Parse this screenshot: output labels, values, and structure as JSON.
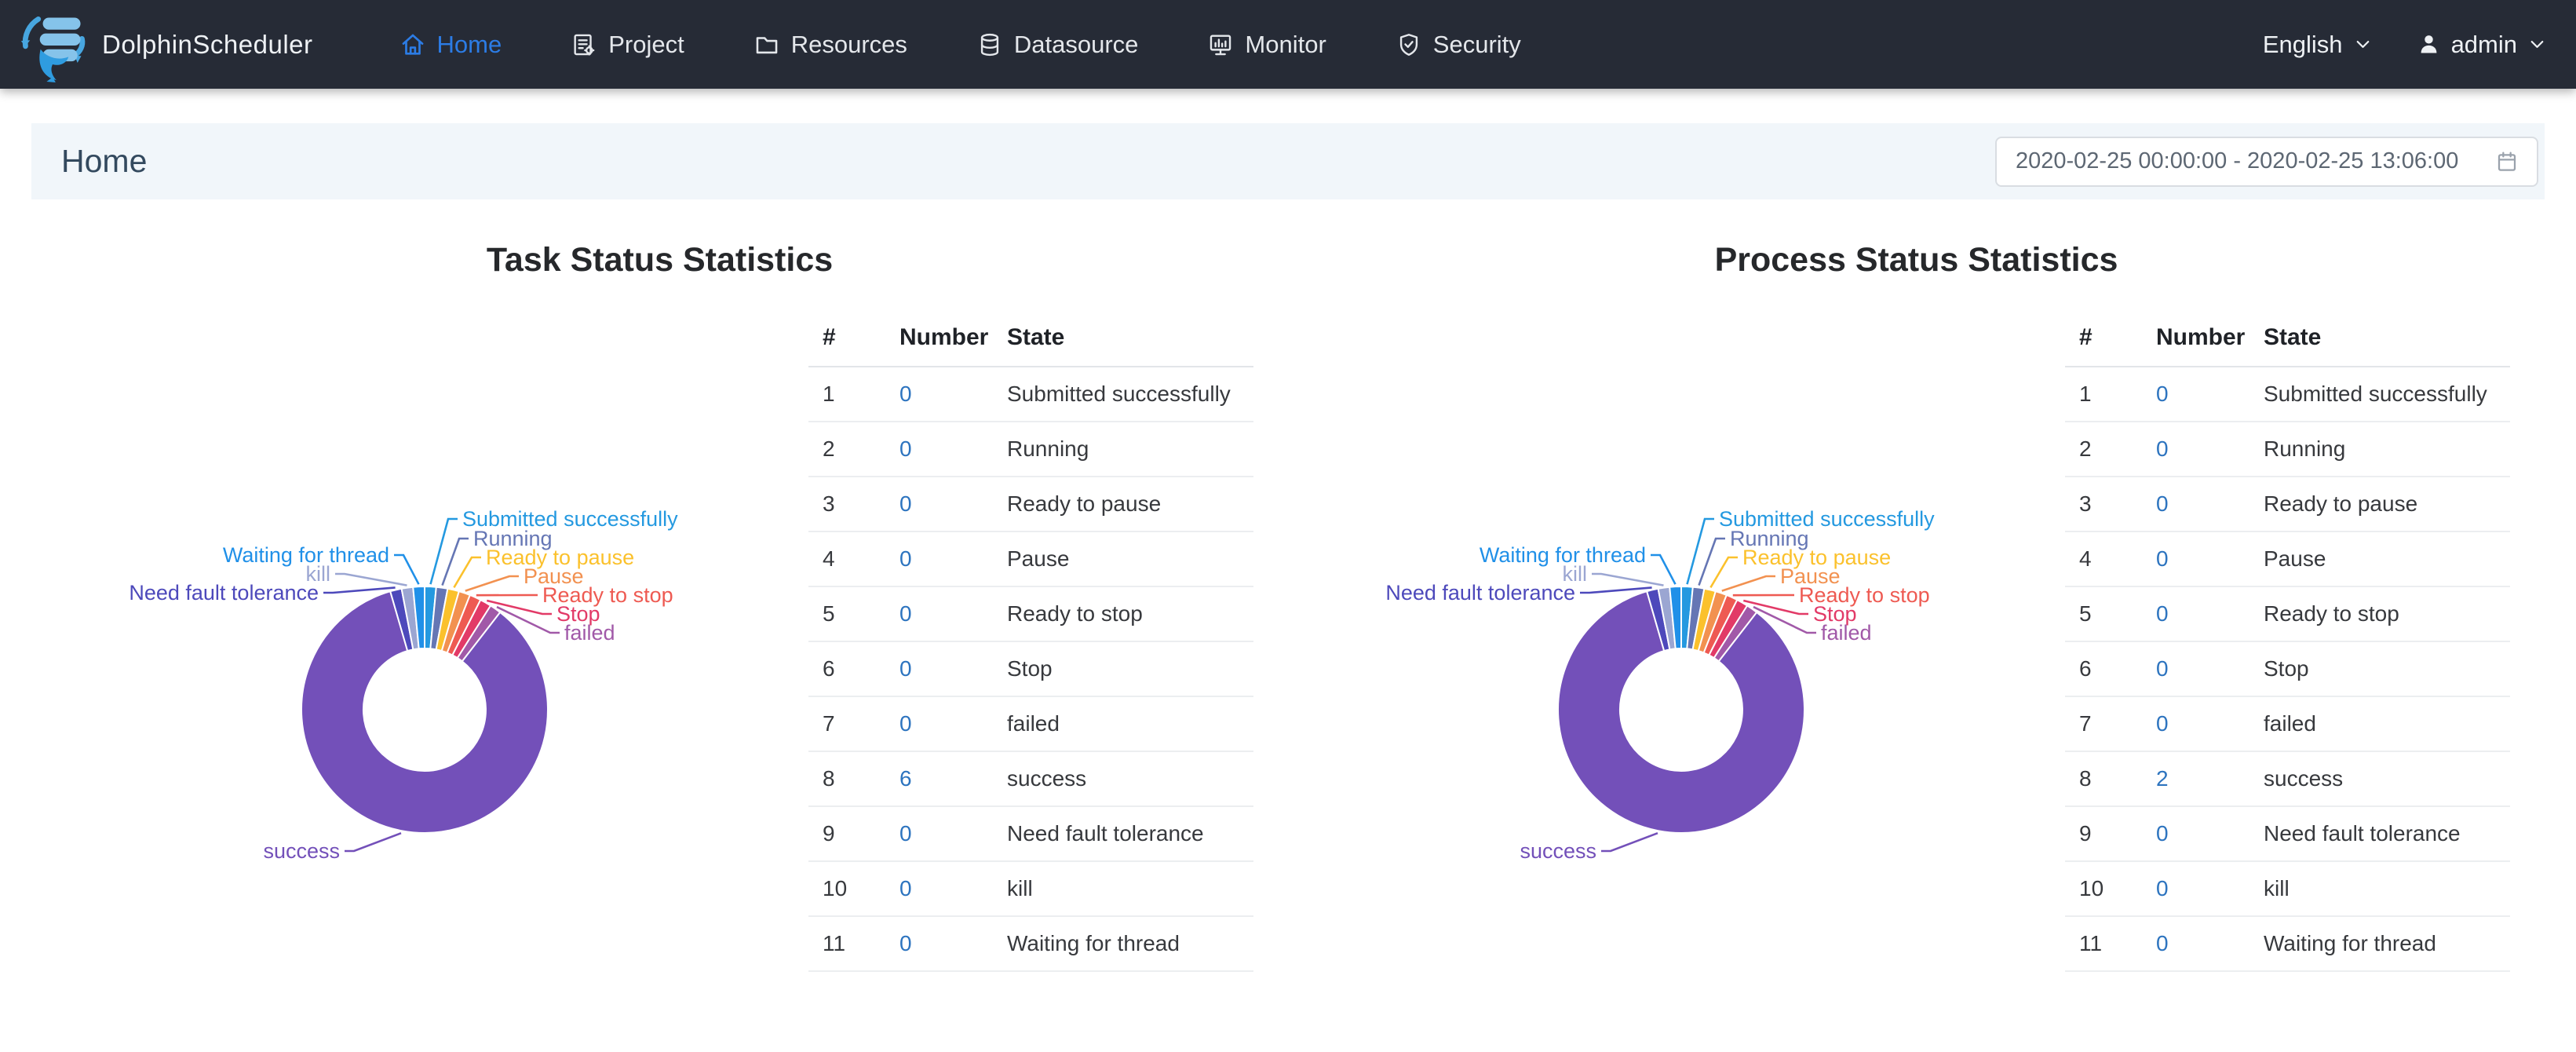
{
  "navbar": {
    "brand": "DolphinScheduler",
    "items": [
      {
        "label": "Home",
        "active": true
      },
      {
        "label": "Project",
        "active": false
      },
      {
        "label": "Resources",
        "active": false
      },
      {
        "label": "Datasource",
        "active": false
      },
      {
        "label": "Monitor",
        "active": false
      },
      {
        "label": "Security",
        "active": false
      }
    ],
    "language": "English",
    "user": "admin"
  },
  "header": {
    "title": "Home",
    "date_range": "2020-02-25 00:00:00 - 2020-02-25 13:06:00"
  },
  "table": {
    "columns": [
      "#",
      "Number",
      "State"
    ]
  },
  "panels": [
    {
      "title": "Task Status Statistics",
      "rows": [
        {
          "index": "1",
          "number": "0",
          "state": "Submitted successfully"
        },
        {
          "index": "2",
          "number": "0",
          "state": "Running"
        },
        {
          "index": "3",
          "number": "0",
          "state": "Ready to pause"
        },
        {
          "index": "4",
          "number": "0",
          "state": "Pause"
        },
        {
          "index": "5",
          "number": "0",
          "state": "Ready to stop"
        },
        {
          "index": "6",
          "number": "0",
          "state": "Stop"
        },
        {
          "index": "7",
          "number": "0",
          "state": "failed"
        },
        {
          "index": "8",
          "number": "6",
          "state": "success"
        },
        {
          "index": "9",
          "number": "0",
          "state": "Need fault tolerance"
        },
        {
          "index": "10",
          "number": "0",
          "state": "kill"
        },
        {
          "index": "11",
          "number": "0",
          "state": "Waiting for thread"
        }
      ]
    },
    {
      "title": "Process Status Statistics",
      "rows": [
        {
          "index": "1",
          "number": "0",
          "state": "Submitted successfully"
        },
        {
          "index": "2",
          "number": "0",
          "state": "Running"
        },
        {
          "index": "3",
          "number": "0",
          "state": "Ready to pause"
        },
        {
          "index": "4",
          "number": "0",
          "state": "Pause"
        },
        {
          "index": "5",
          "number": "0",
          "state": "Ready to stop"
        },
        {
          "index": "6",
          "number": "0",
          "state": "Stop"
        },
        {
          "index": "7",
          "number": "0",
          "state": "failed"
        },
        {
          "index": "8",
          "number": "2",
          "state": "success"
        },
        {
          "index": "9",
          "number": "0",
          "state": "Need fault tolerance"
        },
        {
          "index": "10",
          "number": "0",
          "state": "kill"
        },
        {
          "index": "11",
          "number": "0",
          "state": "Waiting for thread"
        }
      ]
    }
  ],
  "chart_data": [
    {
      "type": "pie",
      "subtype": "donut",
      "title": "Task Status Statistics",
      "labels": [
        "Submitted successfully",
        "Running",
        "Ready to pause",
        "Pause",
        "Ready to stop",
        "Stop",
        "failed",
        "success",
        "Need fault tolerance",
        "kill",
        "Waiting for thread"
      ],
      "values": [
        0,
        0,
        0,
        0,
        0,
        0,
        0,
        6,
        0,
        0,
        0
      ],
      "colors": [
        "#2499e0",
        "#6576b4",
        "#fbc12c",
        "#f29150",
        "#ee5a52",
        "#e23a67",
        "#a159a8",
        "#7350b9",
        "#4d49bb",
        "#9ba6d2",
        "#2090e8"
      ],
      "legend": "none",
      "labels_position": "outside",
      "zero_slice_min_angle_deg": 5.4
    },
    {
      "type": "pie",
      "subtype": "donut",
      "title": "Process Status Statistics",
      "labels": [
        "Submitted successfully",
        "Running",
        "Ready to pause",
        "Pause",
        "Ready to stop",
        "Stop",
        "failed",
        "success",
        "Need fault tolerance",
        "kill",
        "Waiting for thread"
      ],
      "values": [
        0,
        0,
        0,
        0,
        0,
        0,
        0,
        2,
        0,
        0,
        0
      ],
      "colors": [
        "#2499e0",
        "#6576b4",
        "#fbc12c",
        "#f29150",
        "#ee5a52",
        "#e23a67",
        "#a159a8",
        "#7350b9",
        "#4d49bb",
        "#9ba6d2",
        "#2090e8"
      ],
      "legend": "none",
      "labels_position": "outside",
      "zero_slice_min_angle_deg": 5.4
    }
  ],
  "colors": {
    "navbar_bg": "#262b36",
    "header_bg": "#f1f6fa",
    "nav_active": "#2c7ce5",
    "number_link": "#2d74bf",
    "logo_light_blue": "#85c3ea",
    "logo_blue": "#2f9ce0"
  }
}
